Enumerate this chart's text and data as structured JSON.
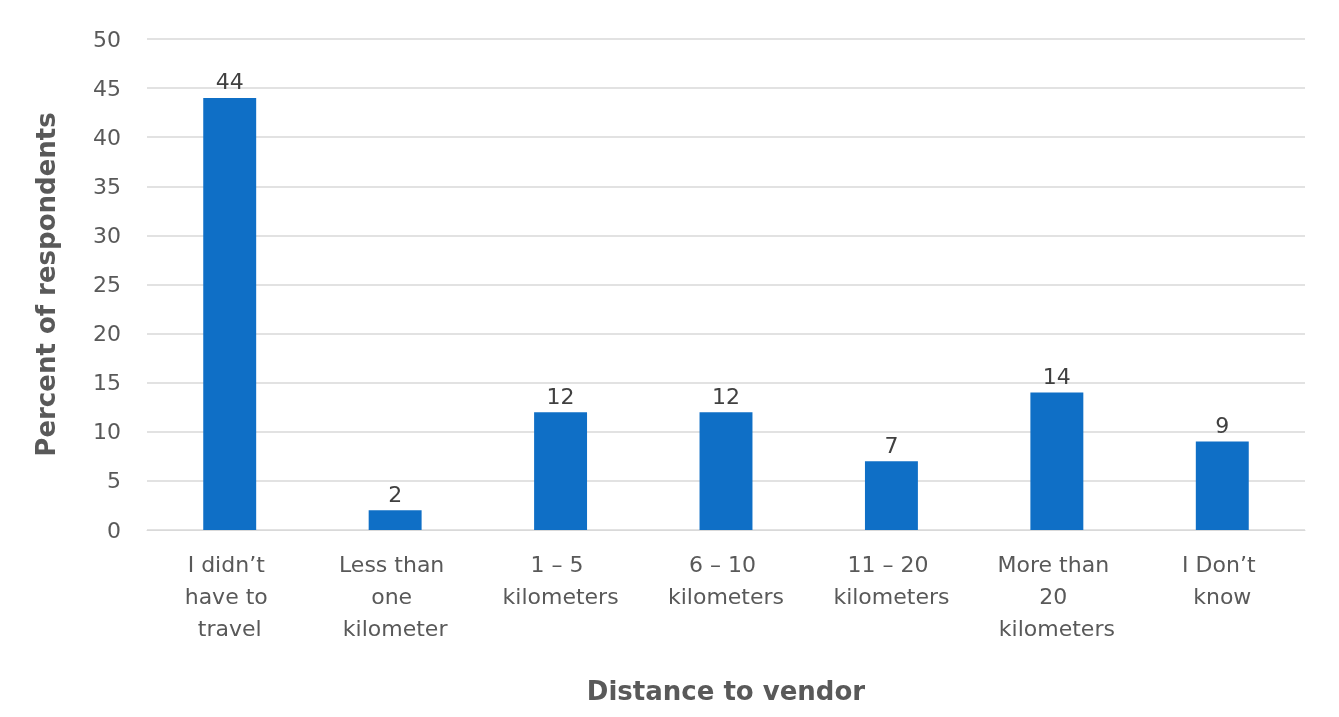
{
  "chart_data": {
    "type": "bar",
    "xlabel": "Distance to vendor",
    "ylabel": "Percent of respondents",
    "categories": [
      "I didn’t have to travel",
      "Less than one kilometer",
      "1 – 5 kilometers",
      "6 – 10 kilometers",
      "11 – 20 kilometers",
      "More than 20 kilometers",
      "I Don’t know"
    ],
    "values": [
      44,
      2,
      12,
      12,
      7,
      14,
      9
    ],
    "color": "#0f6fc6",
    "ylim": [
      0,
      50
    ],
    "yticks": [
      0,
      5,
      10,
      15,
      20,
      25,
      30,
      35,
      40,
      45,
      50
    ],
    "grid": "y",
    "data_labels": true
  }
}
